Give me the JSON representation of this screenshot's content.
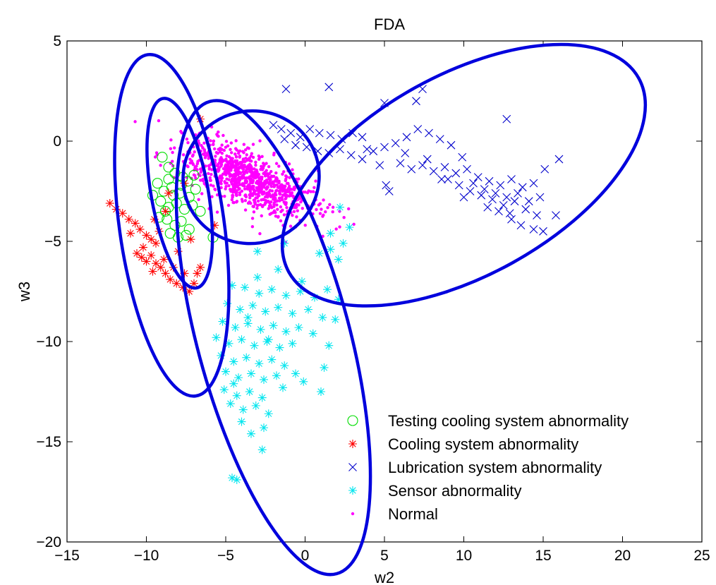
{
  "chart_data": {
    "type": "scatter",
    "title": "FDA",
    "xlabel": "w2",
    "ylabel": "w3",
    "xlim": [
      -15,
      25
    ],
    "ylim": [
      -20,
      5
    ],
    "xticks": [
      -15,
      -10,
      -5,
      0,
      5,
      10,
      15,
      20,
      25
    ],
    "yticks": [
      5,
      0,
      -5,
      -10,
      -15,
      -20
    ],
    "xtick_labels": [
      "−15",
      "−10",
      "−5",
      "0",
      "5",
      "10",
      "15",
      "20",
      "25"
    ],
    "ytick_labels": [
      "5",
      "0",
      "−5",
      "−10",
      "−15",
      "−20"
    ],
    "grid": false,
    "legend_position": "bottom-right",
    "series": [
      {
        "name": "Testing cooling system abnormality",
        "marker": "circle",
        "color": "#00dd00",
        "points": [
          [
            -9,
            -0.8
          ],
          [
            -8.6,
            -1.3
          ],
          [
            -8.2,
            -1.6
          ],
          [
            -7.7,
            -1.8
          ],
          [
            -7.4,
            -2.0
          ],
          [
            -9.3,
            -2.1
          ],
          [
            -8.9,
            -2.5
          ],
          [
            -8.4,
            -2.3
          ],
          [
            -7.9,
            -2.6
          ],
          [
            -7.3,
            -2.8
          ],
          [
            -6.9,
            -2.4
          ],
          [
            -9.1,
            -3.0
          ],
          [
            -8.6,
            -3.3
          ],
          [
            -8.1,
            -3.1
          ],
          [
            -7.6,
            -3.4
          ],
          [
            -7.1,
            -3.2
          ],
          [
            -9.2,
            -3.8
          ],
          [
            -8.7,
            -3.9
          ],
          [
            -8.2,
            -4.2
          ],
          [
            -7.8,
            -4.0
          ],
          [
            -7.3,
            -4.4
          ],
          [
            -8.5,
            -4.6
          ],
          [
            -8.0,
            -4.8
          ],
          [
            -7.5,
            -4.7
          ],
          [
            -8.8,
            -3.5
          ],
          [
            -7.8,
            -2.2
          ],
          [
            -8.3,
            -2.7
          ],
          [
            -6.6,
            -3.5
          ],
          [
            -5.8,
            -4.8
          ],
          [
            -8.6,
            -1.9
          ],
          [
            -9.6,
            -2.7
          ],
          [
            -7.0,
            -1.7
          ]
        ]
      },
      {
        "name": "Cooling system abnormality",
        "marker": "star",
        "color": "#ff0000",
        "points": [
          [
            -12.3,
            -3.1
          ],
          [
            -11.9,
            -3.4
          ],
          [
            -11.5,
            -3.6
          ],
          [
            -11.1,
            -3.9
          ],
          [
            -10.7,
            -4.1
          ],
          [
            -10.4,
            -4.4
          ],
          [
            -10.0,
            -4.7
          ],
          [
            -9.7,
            -4.9
          ],
          [
            -9.4,
            -5.1
          ],
          [
            -10.6,
            -5.6
          ],
          [
            -10.3,
            -5.8
          ],
          [
            -10.0,
            -6.0
          ],
          [
            -9.7,
            -5.7
          ],
          [
            -9.4,
            -6.1
          ],
          [
            -9.1,
            -6.3
          ],
          [
            -8.8,
            -6.6
          ],
          [
            -8.5,
            -6.9
          ],
          [
            -8.1,
            -7.1
          ],
          [
            -7.7,
            -7.3
          ],
          [
            -7.3,
            -7.5
          ],
          [
            -7.0,
            -7.1
          ],
          [
            -6.8,
            -6.6
          ],
          [
            -6.6,
            -6.3
          ],
          [
            -7.6,
            -6.6
          ],
          [
            -8.3,
            -6.3
          ],
          [
            -8.9,
            -5.9
          ],
          [
            -9.6,
            -6.5
          ],
          [
            -10.2,
            -5.3
          ],
          [
            -11.0,
            -4.6
          ],
          [
            -9.5,
            -3.9
          ],
          [
            -8.8,
            -3.5
          ],
          [
            -8.6,
            -2.6
          ],
          [
            -7.6,
            -2.1
          ],
          [
            -6.6,
            1.1
          ],
          [
            -5.7,
            -4.2
          ],
          [
            -7.2,
            -4.9
          ],
          [
            -8.0,
            -5.5
          ],
          [
            -9.2,
            -4.5
          ]
        ]
      },
      {
        "name": "Lubrication system abnormality",
        "marker": "x",
        "color": "#0000cc",
        "points": [
          [
            -1.2,
            2.6
          ],
          [
            1.5,
            2.7
          ],
          [
            5,
            1.9
          ],
          [
            7,
            2.0
          ],
          [
            7.4,
            2.6
          ],
          [
            12.7,
            1.1
          ],
          [
            -2.0,
            0.8
          ],
          [
            -1.5,
            0.6
          ],
          [
            -0.9,
            0.4
          ],
          [
            -0.3,
            0.2
          ],
          [
            0.3,
            0.6
          ],
          [
            0.9,
            0.4
          ],
          [
            1.6,
            0.3
          ],
          [
            2.3,
            0.1
          ],
          [
            3.0,
            0.4
          ],
          [
            3.6,
            0.2
          ],
          [
            -1.3,
            0.1
          ],
          [
            -0.6,
            -0.2
          ],
          [
            0.1,
            -0.3
          ],
          [
            0.8,
            -0.5
          ],
          [
            1.5,
            -0.6
          ],
          [
            2.2,
            -0.4
          ],
          [
            2.9,
            -0.7
          ],
          [
            3.6,
            -0.9
          ],
          [
            4.3,
            -0.5
          ],
          [
            5.0,
            -0.3
          ],
          [
            5.7,
            -0.1
          ],
          [
            6.4,
            0.2
          ],
          [
            7.1,
            0.6
          ],
          [
            7.8,
            0.4
          ],
          [
            8.5,
            0.1
          ],
          [
            9.2,
            -0.2
          ],
          [
            6.0,
            -1.1
          ],
          [
            6.7,
            -1.4
          ],
          [
            7.4,
            -1.2
          ],
          [
            8.1,
            -1.5
          ],
          [
            8.8,
            -1.3
          ],
          [
            9.5,
            -1.6
          ],
          [
            10.2,
            -1.4
          ],
          [
            10.9,
            -1.8
          ],
          [
            11.6,
            -2.0
          ],
          [
            12.3,
            -2.2
          ],
          [
            13.0,
            -1.9
          ],
          [
            13.7,
            -2.3
          ],
          [
            14.4,
            -2.1
          ],
          [
            15.1,
            -1.4
          ],
          [
            16.0,
            -0.9
          ],
          [
            9.0,
            -1.9
          ],
          [
            9.7,
            -2.2
          ],
          [
            10.4,
            -2.5
          ],
          [
            11.1,
            -2.7
          ],
          [
            11.8,
            -2.9
          ],
          [
            12.5,
            -3.2
          ],
          [
            13.2,
            -3.0
          ],
          [
            13.9,
            -3.4
          ],
          [
            14.6,
            -3.7
          ],
          [
            10.6,
            -2.1
          ],
          [
            11.3,
            -2.4
          ],
          [
            12.0,
            -2.6
          ],
          [
            12.7,
            -2.8
          ],
          [
            13.4,
            -2.6
          ],
          [
            14.1,
            -3.0
          ],
          [
            12.2,
            -3.5
          ],
          [
            13.0,
            -3.9
          ],
          [
            13.6,
            -4.2
          ],
          [
            14.4,
            -4.4
          ],
          [
            15.0,
            -4.5
          ],
          [
            15.8,
            -3.7
          ],
          [
            14.8,
            -2.8
          ],
          [
            5.1,
            -2.2
          ],
          [
            5.3,
            -2.5
          ],
          [
            11.5,
            -3.3
          ],
          [
            12.9,
            -3.6
          ],
          [
            10.0,
            -2.8
          ],
          [
            8.6,
            -1.9
          ],
          [
            7.7,
            -0.9
          ],
          [
            6.3,
            -0.6
          ],
          [
            4.7,
            -1.2
          ],
          [
            3.9,
            -0.4
          ],
          [
            9.9,
            -0.8
          ]
        ]
      },
      {
        "name": "Sensor abnormality",
        "marker": "asterisk",
        "color": "#00e5ee",
        "points": [
          [
            2.2,
            -3.3
          ],
          [
            2.8,
            -4.3
          ],
          [
            1.6,
            -4.6
          ],
          [
            2.4,
            -5.1
          ],
          [
            0.9,
            -5.6
          ],
          [
            1.6,
            -5.4
          ],
          [
            2.1,
            -5.9
          ],
          [
            -1.3,
            -5.1
          ],
          [
            -3.0,
            -5.5
          ],
          [
            -1.7,
            -6.4
          ],
          [
            -4.6,
            -7.2
          ],
          [
            -3.8,
            -7.3
          ],
          [
            -2.9,
            -7.6
          ],
          [
            -2.1,
            -7.4
          ],
          [
            -1.2,
            -7.7
          ],
          [
            -0.3,
            -7.5
          ],
          [
            0.6,
            -7.8
          ],
          [
            1.4,
            -7.4
          ],
          [
            2.1,
            -7.9
          ],
          [
            -4.9,
            -8.1
          ],
          [
            -4.1,
            -8.4
          ],
          [
            -3.3,
            -8.2
          ],
          [
            -2.5,
            -8.5
          ],
          [
            -1.7,
            -8.3
          ],
          [
            -0.8,
            -8.6
          ],
          [
            0.2,
            -8.4
          ],
          [
            1.1,
            -8.8
          ],
          [
            1.9,
            -8.9
          ],
          [
            -5.2,
            -9.0
          ],
          [
            -4.4,
            -9.3
          ],
          [
            -3.6,
            -9.1
          ],
          [
            -2.8,
            -9.4
          ],
          [
            -2.0,
            -9.2
          ],
          [
            -1.2,
            -9.5
          ],
          [
            -0.4,
            -9.3
          ],
          [
            -5.6,
            -9.8
          ],
          [
            -4.8,
            -10.1
          ],
          [
            -4.0,
            -9.9
          ],
          [
            -3.2,
            -10.2
          ],
          [
            -2.4,
            -10.0
          ],
          [
            -1.6,
            -10.3
          ],
          [
            -0.8,
            -10.1
          ],
          [
            -5.3,
            -10.7
          ],
          [
            -4.5,
            -11.0
          ],
          [
            -3.7,
            -10.8
          ],
          [
            -2.9,
            -11.1
          ],
          [
            -2.1,
            -10.9
          ],
          [
            -1.3,
            -11.2
          ],
          [
            -5.0,
            -11.5
          ],
          [
            -4.2,
            -11.8
          ],
          [
            -3.4,
            -11.6
          ],
          [
            -2.6,
            -11.9
          ],
          [
            -1.8,
            -11.7
          ],
          [
            -0.1,
            -12.0
          ],
          [
            -5.1,
            -12.4
          ],
          [
            -4.3,
            -12.7
          ],
          [
            -3.5,
            -12.5
          ],
          [
            -2.7,
            -12.8
          ],
          [
            1.0,
            -12.5
          ],
          [
            -4.7,
            -13.1
          ],
          [
            -3.9,
            -13.4
          ],
          [
            -3.1,
            -13.2
          ],
          [
            -2.3,
            -13.6
          ],
          [
            -4.0,
            -14.0
          ],
          [
            -3.4,
            -14.6
          ],
          [
            -2.6,
            -14.3
          ],
          [
            -2.7,
            -15.4
          ],
          [
            -4.6,
            -16.8
          ],
          [
            -4.3,
            -16.9
          ],
          [
            1.2,
            -11.3
          ],
          [
            -0.6,
            -11.6
          ],
          [
            -1.4,
            -12.3
          ],
          [
            -3.0,
            -6.8
          ],
          [
            0.5,
            -9.6
          ],
          [
            1.5,
            -10.2
          ],
          [
            -0.2,
            -7.0
          ],
          [
            -2.3,
            -9.9
          ],
          [
            -3.6,
            -8.8
          ],
          [
            -4.5,
            -12.1
          ]
        ]
      },
      {
        "name": "Normal",
        "marker": "dot",
        "color": "#ff00ff",
        "center": [
          -3.6,
          -1.9
        ],
        "spread": [
          2.2,
          0.7
        ],
        "count": 900
      }
    ],
    "ellipses": [
      {
        "center": [
          -8.4,
          -4.2
        ],
        "rx": 3.3,
        "ry": 8.6,
        "angle_deg": -8,
        "color": "#0000dd"
      },
      {
        "center": [
          -7.9,
          -2.6
        ],
        "rx": 1.8,
        "ry": 4.8,
        "angle_deg": -10,
        "color": "#0000dd"
      },
      {
        "center": [
          -3.4,
          -1.8
        ],
        "rx": 4.3,
        "ry": 3.3,
        "angle_deg": -18,
        "color": "#0000dd"
      },
      {
        "center": [
          -2.0,
          -9.8
        ],
        "rx": 4.8,
        "ry": 12.2,
        "angle_deg": -15,
        "color": "#0000dd"
      },
      {
        "center": [
          10.0,
          -1.7
        ],
        "rx": 12.6,
        "ry": 5.0,
        "angle_deg": -29,
        "color": "#0000dd"
      }
    ]
  }
}
